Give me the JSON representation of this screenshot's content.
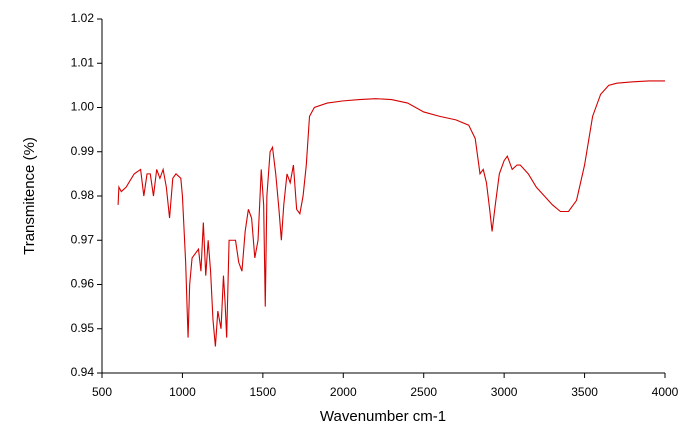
{
  "chart_data": {
    "type": "line",
    "x_label": "Wavenumber cm-1",
    "y_label": "Transmitence (%)",
    "xlim": [
      500,
      4000
    ],
    "xticks": [
      500,
      1000,
      1500,
      2000,
      2500,
      3000,
      3500,
      4000
    ],
    "ylim": [
      0.94,
      1.02
    ],
    "yticks": [
      0.94,
      0.95,
      0.96,
      0.97,
      0.98,
      0.99,
      {
        "value": 1,
        "label": "1.00"
      },
      1.01,
      1.02
    ],
    "series": [
      {
        "color": "#d40000",
        "x": [
          600,
          605,
          620,
          650,
          700,
          740,
          760,
          780,
          800,
          820,
          840,
          860,
          880,
          900,
          920,
          940,
          960,
          990,
          1000,
          1020,
          1035,
          1045,
          1060,
          1080,
          1100,
          1115,
          1130,
          1145,
          1160,
          1175,
          1190,
          1205,
          1220,
          1240,
          1255,
          1265,
          1275,
          1290,
          1310,
          1330,
          1350,
          1370,
          1390,
          1410,
          1430,
          1450,
          1470,
          1490,
          1505,
          1515,
          1525,
          1545,
          1560,
          1580,
          1600,
          1615,
          1630,
          1650,
          1670,
          1690,
          1710,
          1730,
          1750,
          1770,
          1790,
          1820,
          1900,
          2000,
          2100,
          2200,
          2300,
          2400,
          2500,
          2600,
          2700,
          2780,
          2820,
          2850,
          2870,
          2890,
          2910,
          2925,
          2945,
          2970,
          3000,
          3020,
          3050,
          3080,
          3100,
          3150,
          3200,
          3250,
          3300,
          3350,
          3400,
          3450,
          3500,
          3550,
          3600,
          3650,
          3700,
          3800,
          3900,
          4000
        ],
        "values": [
          0.978,
          0.982,
          0.981,
          0.982,
          0.985,
          0.986,
          0.98,
          0.985,
          0.985,
          0.98,
          0.986,
          0.984,
          0.986,
          0.982,
          0.975,
          0.984,
          0.985,
          0.984,
          0.98,
          0.965,
          0.948,
          0.96,
          0.966,
          0.967,
          0.968,
          0.963,
          0.974,
          0.962,
          0.97,
          0.963,
          0.952,
          0.946,
          0.954,
          0.95,
          0.962,
          0.956,
          0.948,
          0.97,
          0.97,
          0.97,
          0.965,
          0.963,
          0.972,
          0.977,
          0.975,
          0.966,
          0.97,
          0.986,
          0.978,
          0.955,
          0.98,
          0.99,
          0.991,
          0.985,
          0.977,
          0.97,
          0.978,
          0.985,
          0.983,
          0.987,
          0.977,
          0.976,
          0.98,
          0.987,
          0.998,
          1.0,
          1.001,
          1.0015,
          1.0018,
          1.002,
          1.0018,
          1.001,
          0.999,
          0.998,
          0.9972,
          0.996,
          0.993,
          0.985,
          0.986,
          0.983,
          0.977,
          0.972,
          0.978,
          0.985,
          0.988,
          0.989,
          0.986,
          0.987,
          0.987,
          0.985,
          0.982,
          0.98,
          0.978,
          0.9765,
          0.9765,
          0.979,
          0.987,
          0.998,
          1.003,
          1.005,
          1.0055,
          1.0058,
          1.006,
          1.006
        ]
      }
    ]
  }
}
